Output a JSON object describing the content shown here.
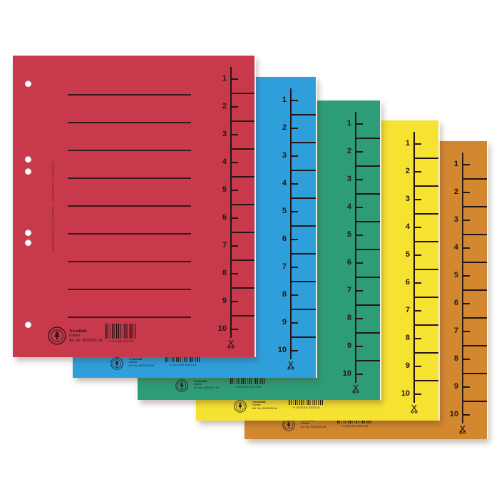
{
  "product_photo": {
    "description": "Fanned stack of five colored cardboard divider sheets with printed 1-10 cut-off scale",
    "background_color": "#ffffff",
    "ink_color": "#241616"
  },
  "sheets": [
    {
      "color_name": "red",
      "color": "#c7394b"
    },
    {
      "color_name": "blue",
      "color": "#2e9fdb"
    },
    {
      "color_name": "green",
      "color": "#2f9c78"
    },
    {
      "color_name": "yellow",
      "color": "#f6e331"
    },
    {
      "color_name": "orange",
      "color": "#d3872f"
    }
  ],
  "scale_numbers": [
    "1",
    "2",
    "3",
    "4",
    "5",
    "6",
    "7",
    "8",
    "9",
    "10"
  ],
  "bottom_print": {
    "label_lines": [
      "Trennblatt",
      "Divider",
      "Art. No. 98100/01-04"
    ],
    "barcode_digits": "9 003108 053216",
    "icons": {
      "stamp": "eco-tree-stamp-icon",
      "scissors": "scissors-icon",
      "barcode": "ean-barcode"
    }
  },
  "microprint": "100% RECYCLING KARTON - CHLORFREI GEBLEICHT"
}
